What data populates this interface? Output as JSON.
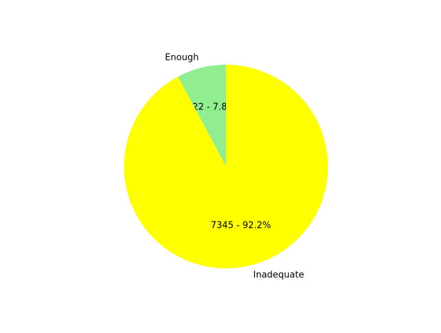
{
  "chart_data": {
    "type": "pie",
    "start_angle": "top",
    "direction": "counterclockwise",
    "slices": [
      {
        "label": "Enough",
        "value": 622,
        "percent": 7.8,
        "autopct": "622 - 7.8%",
        "color": "#90EE90"
      },
      {
        "label": "Inadequate",
        "value": 7345,
        "percent": 92.2,
        "autopct": "7345 - 92.2%",
        "color": "#FFFF00"
      }
    ]
  }
}
